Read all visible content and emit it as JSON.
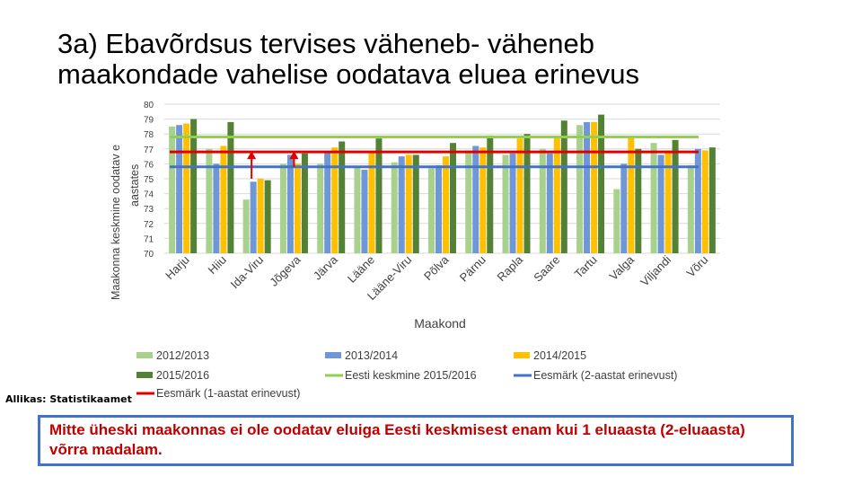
{
  "page": {
    "title_line1": "3a) Ebavõrdsus tervises väheneb- väheneb",
    "title_line2": "maakondade vahelise oodatava eluea erinevus",
    "source": "Allikas: Statistikaamet",
    "note": "Mitte üheski maakonnas ei ole oodatav eluiga Eesti keskmisest enam kui 1 eluaasta (2-eluaasta) võrra madalam."
  },
  "colors": {
    "s2012": "#a9d18e",
    "s2013": "#6f96d6",
    "s2014": "#ffc000",
    "s2015": "#548235",
    "avg": "#92d050",
    "goal2": "#4472c4",
    "goal1": "#e00000",
    "grid": "#d9d9d9",
    "axis_text": "#404040",
    "arrow": "#e00000"
  },
  "chart_data": {
    "type": "bar",
    "title": "3a) Ebavõrdsus tervises väheneb- väheneb maakondade vahelise oodatava eluea erinevus",
    "xlabel": "Maakond",
    "ylabel": "Maakonna keskmine oodatav eluiga aastates",
    "ylabel_line1": "Maakonna keskmine oodatav e",
    "ylabel_line2": "aastates",
    "ylim": [
      70,
      80
    ],
    "yticks": [
      "70",
      "71",
      "72",
      "73",
      "74",
      "75",
      "76",
      "77",
      "78",
      "79",
      "80"
    ],
    "categories": [
      "Harju",
      "Hiiu",
      "Ida-Viru",
      "Jõgeva",
      "Järva",
      "Lääne",
      "Lääne-Viru",
      "Põlva",
      "Pärnu",
      "Rapla",
      "Saare",
      "Tartu",
      "Valga",
      "Viljandi",
      "Võru"
    ],
    "series": [
      {
        "name": "2012/2013",
        "key": "s2012",
        "values": [
          78.5,
          77.0,
          73.6,
          76.0,
          76.0,
          75.8,
          76.1,
          75.7,
          76.9,
          76.6,
          77.0,
          78.6,
          74.3,
          77.4,
          75.9
        ]
      },
      {
        "name": "2013/2014",
        "key": "s2013",
        "values": [
          78.6,
          76.0,
          74.8,
          76.6,
          76.8,
          75.6,
          76.5,
          75.9,
          77.2,
          76.7,
          76.7,
          78.8,
          76.0,
          76.6,
          77.0
        ]
      },
      {
        "name": "2014/2015",
        "key": "s2014",
        "values": [
          78.7,
          77.2,
          75.0,
          76.0,
          77.1,
          76.8,
          76.6,
          76.5,
          77.1,
          77.7,
          77.8,
          78.8,
          77.8,
          76.9,
          76.9
        ]
      },
      {
        "name": "2015/2016",
        "key": "s2015",
        "values": [
          79.0,
          78.8,
          74.9,
          76.7,
          77.5,
          77.7,
          76.6,
          77.4,
          77.9,
          78.0,
          78.9,
          79.3,
          77.0,
          77.6,
          77.1
        ]
      }
    ],
    "reference_lines": [
      {
        "name": "Eesti keskmine 2015/2016",
        "key": "avg",
        "value": 77.8
      },
      {
        "name": "Eesmärk (2-aastat erinevust)",
        "key": "goal2",
        "value": 75.8
      },
      {
        "name": "Eesmärk (1-aastat erinevust)",
        "key": "goal1",
        "value": 76.8
      }
    ],
    "legend_position": "bottom",
    "grid": true,
    "annotations": [
      {
        "type": "arrow",
        "category": "Ida-Viru",
        "from": 75.0,
        "to": 76.8
      },
      {
        "type": "arrow",
        "category": "Jõgeva",
        "from": 75.8,
        "to": 76.8
      }
    ]
  }
}
